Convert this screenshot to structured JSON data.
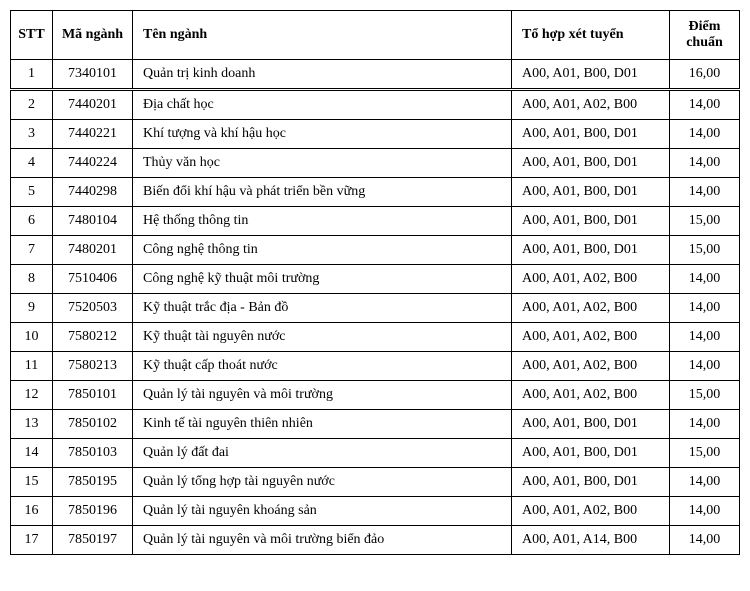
{
  "table": {
    "columns": {
      "stt": "STT",
      "ma": "Mã ngành",
      "ten": "Tên ngành",
      "tohop": "Tổ hợp xét tuyển",
      "diem": "Điểm chuẩn"
    },
    "col_widths": {
      "stt": 42,
      "ma": 80,
      "tohop": 158,
      "diem": 70
    },
    "font_family": "Times New Roman",
    "font_size_pt": 11,
    "border_color": "#000000",
    "background_color": "#ffffff",
    "text_color": "#000000",
    "double_separator_after_row": 1,
    "rows": [
      {
        "stt": "1",
        "ma": "7340101",
        "ten": "Quản trị kinh doanh",
        "tohop": "A00, A01, B00, D01",
        "diem": "16,00"
      },
      {
        "stt": "2",
        "ma": "7440201",
        "ten": "Địa chất học",
        "tohop": "A00, A01, A02, B00",
        "diem": "14,00"
      },
      {
        "stt": "3",
        "ma": "7440221",
        "ten": "Khí tượng và khí hậu học",
        "tohop": "A00, A01, B00, D01",
        "diem": "14,00"
      },
      {
        "stt": "4",
        "ma": "7440224",
        "ten": "Thủy văn học",
        "tohop": "A00, A01, B00, D01",
        "diem": "14,00"
      },
      {
        "stt": "5",
        "ma": "7440298",
        "ten": "Biến đổi khí hậu và phát triển bền vững",
        "tohop": "A00, A01, B00, D01",
        "diem": "14,00"
      },
      {
        "stt": "6",
        "ma": "7480104",
        "ten": "Hệ thống thông tin",
        "tohop": "A00, A01, B00, D01",
        "diem": "15,00"
      },
      {
        "stt": "7",
        "ma": "7480201",
        "ten": "Công nghệ thông tin",
        "tohop": "A00, A01, B00, D01",
        "diem": "15,00"
      },
      {
        "stt": "8",
        "ma": "7510406",
        "ten": "Công nghệ kỹ thuật môi trường",
        "tohop": "A00, A01, A02, B00",
        "diem": "14,00"
      },
      {
        "stt": "9",
        "ma": "7520503",
        "ten": "Kỹ thuật trắc địa - Bản đồ",
        "tohop": "A00, A01, A02, B00",
        "diem": "14,00"
      },
      {
        "stt": "10",
        "ma": "7580212",
        "ten": "Kỹ thuật tài nguyên nước",
        "tohop": "A00, A01, A02, B00",
        "diem": "14,00"
      },
      {
        "stt": "11",
        "ma": "7580213",
        "ten": "Kỹ thuật cấp thoát nước",
        "tohop": "A00, A01, A02, B00",
        "diem": "14,00"
      },
      {
        "stt": "12",
        "ma": "7850101",
        "ten": "Quản lý tài nguyên và môi trường",
        "tohop": "A00, A01, A02, B00",
        "diem": "15,00"
      },
      {
        "stt": "13",
        "ma": "7850102",
        "ten": "Kinh tế tài nguyên thiên nhiên",
        "tohop": "A00, A01, B00, D01",
        "diem": "14,00"
      },
      {
        "stt": "14",
        "ma": "7850103",
        "ten": "Quản lý đất đai",
        "tohop": "A00, A01, B00, D01",
        "diem": "15,00"
      },
      {
        "stt": "15",
        "ma": "7850195",
        "ten": "Quản lý tổng hợp tài nguyên nước",
        "tohop": "A00, A01, B00, D01",
        "diem": "14,00"
      },
      {
        "stt": "16",
        "ma": "7850196",
        "ten": "Quản lý tài nguyên khoáng sản",
        "tohop": "A00, A01, A02, B00",
        "diem": "14,00"
      },
      {
        "stt": "17",
        "ma": "7850197",
        "ten": "Quản lý tài nguyên và môi trường biển đảo",
        "tohop": "A00, A01, A14, B00",
        "diem": "14,00"
      }
    ]
  }
}
